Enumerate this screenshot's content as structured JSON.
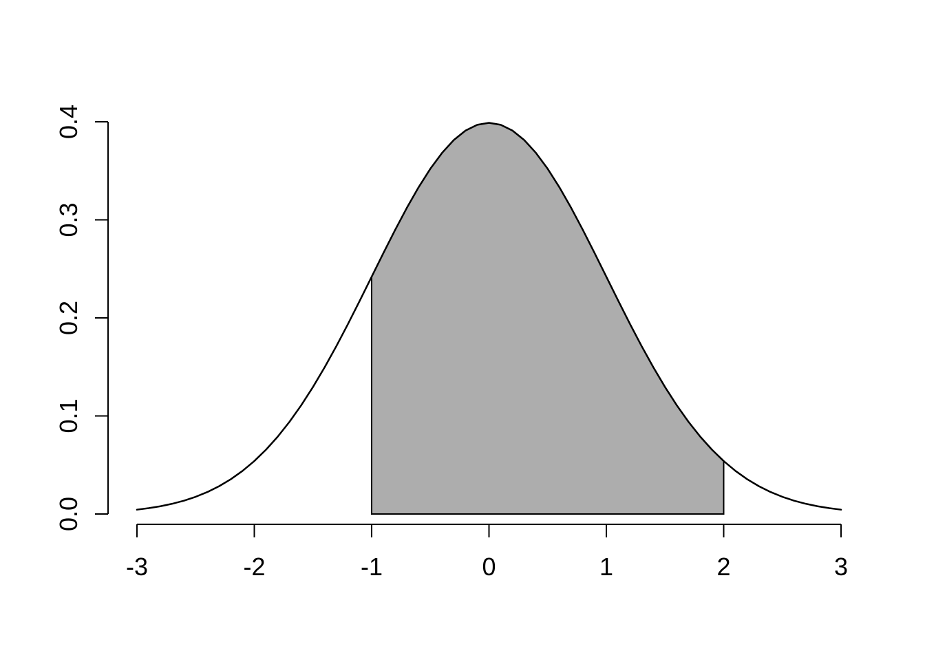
{
  "chart_data": {
    "type": "area",
    "title": "",
    "xlabel": "",
    "ylabel": "",
    "xlim": [
      -3,
      3
    ],
    "ylim": [
      0.0,
      0.4
    ],
    "grid": false,
    "legend": null,
    "x_ticks": [
      {
        "value": -3,
        "label": "-3"
      },
      {
        "value": -2,
        "label": "-2"
      },
      {
        "value": -1,
        "label": "-1"
      },
      {
        "value": 0,
        "label": "0"
      },
      {
        "value": 1,
        "label": "1"
      },
      {
        "value": 2,
        "label": "2"
      },
      {
        "value": 3,
        "label": "3"
      }
    ],
    "y_ticks": [
      {
        "value": 0.0,
        "label": "0.0"
      },
      {
        "value": 0.1,
        "label": "0.1"
      },
      {
        "value": 0.2,
        "label": "0.2"
      },
      {
        "value": 0.3,
        "label": "0.3"
      },
      {
        "value": 0.4,
        "label": "0.4"
      }
    ],
    "series": [
      {
        "name": "standard-normal-density-curve",
        "description": "dnorm(x), standard normal probability density",
        "points": [
          [
            -3.0,
            0.00443
          ],
          [
            -2.9,
            0.00595
          ],
          [
            -2.8,
            0.00792
          ],
          [
            -2.7,
            0.01042
          ],
          [
            -2.6,
            0.01358
          ],
          [
            -2.5,
            0.01753
          ],
          [
            -2.4,
            0.02239
          ],
          [
            -2.3,
            0.02833
          ],
          [
            -2.2,
            0.03547
          ],
          [
            -2.1,
            0.04398
          ],
          [
            -2.0,
            0.05399
          ],
          [
            -1.9,
            0.06562
          ],
          [
            -1.8,
            0.07895
          ],
          [
            -1.7,
            0.09405
          ],
          [
            -1.6,
            0.11092
          ],
          [
            -1.5,
            0.12952
          ],
          [
            -1.4,
            0.14973
          ],
          [
            -1.3,
            0.17137
          ],
          [
            -1.2,
            0.19419
          ],
          [
            -1.1,
            0.21785
          ],
          [
            -1.0,
            0.24197
          ],
          [
            -0.9,
            0.26609
          ],
          [
            -0.8,
            0.28969
          ],
          [
            -0.7,
            0.31225
          ],
          [
            -0.6,
            0.33322
          ],
          [
            -0.5,
            0.35207
          ],
          [
            -0.4,
            0.36827
          ],
          [
            -0.3,
            0.38139
          ],
          [
            -0.2,
            0.39104
          ],
          [
            -0.1,
            0.39695
          ],
          [
            0.0,
            0.39894
          ],
          [
            0.1,
            0.39695
          ],
          [
            0.2,
            0.39104
          ],
          [
            0.3,
            0.38139
          ],
          [
            0.4,
            0.36827
          ],
          [
            0.5,
            0.35207
          ],
          [
            0.6,
            0.33322
          ],
          [
            0.7,
            0.31225
          ],
          [
            0.8,
            0.28969
          ],
          [
            0.9,
            0.26609
          ],
          [
            1.0,
            0.24197
          ],
          [
            1.1,
            0.21785
          ],
          [
            1.2,
            0.19419
          ],
          [
            1.3,
            0.17137
          ],
          [
            1.4,
            0.14973
          ],
          [
            1.5,
            0.12952
          ],
          [
            1.6,
            0.11092
          ],
          [
            1.7,
            0.09405
          ],
          [
            1.8,
            0.07895
          ],
          [
            1.9,
            0.06562
          ],
          [
            2.0,
            0.05399
          ],
          [
            2.1,
            0.04398
          ],
          [
            2.2,
            0.03547
          ],
          [
            2.3,
            0.02833
          ],
          [
            2.4,
            0.02239
          ],
          [
            2.5,
            0.01753
          ],
          [
            2.6,
            0.01358
          ],
          [
            2.7,
            0.01042
          ],
          [
            2.8,
            0.00792
          ],
          [
            2.9,
            0.00595
          ],
          [
            3.0,
            0.00443
          ]
        ]
      }
    ],
    "shaded_region": {
      "name": "area-under-curve",
      "x_from": -1,
      "x_to": 2,
      "baseline": 0.0
    },
    "colors": {
      "background": "#ffffff",
      "curve": "#000000",
      "shaded_fill": "#adadad",
      "shaded_border": "#000000",
      "axis": "#000000",
      "tick_label": "#000000"
    }
  }
}
